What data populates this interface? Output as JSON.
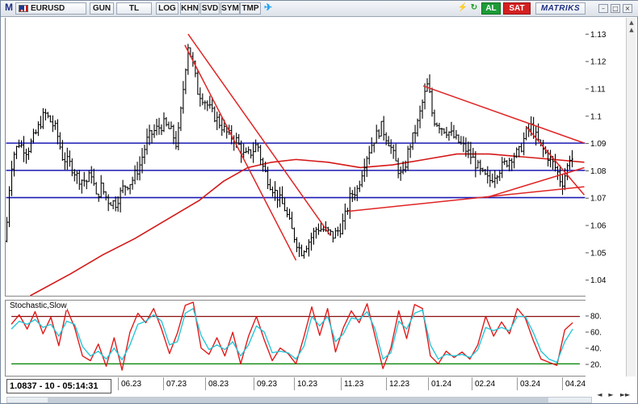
{
  "toolbar": {
    "menu_label": "M",
    "symbol": "EURUSD",
    "period_label": "GUN",
    "currency_label": "TL",
    "log_label": "LOG",
    "khn_label": "KHN",
    "svd_label": "SVD",
    "sym_label": "SYM",
    "tmp_label": "TMP",
    "twitter_icon": "twitter-bird-icon",
    "bolt_icon": "lightning-icon",
    "fast_icon": "fast-trade-icon",
    "buy_label": "AL",
    "sell_label": "SAT",
    "brand": "MATRIKS",
    "buy_color": "#1d9b38",
    "sell_color": "#d42020"
  },
  "window_controls": {
    "minimize": "–",
    "maximize": "□",
    "close": "×"
  },
  "readout": "1.0837 - 10 - 05:14:31",
  "date_axis": [
    "06.23",
    "07.23",
    "08.23",
    "09.23",
    "10.23",
    "11.23",
    "12.23",
    "01.24",
    "02.24",
    "03.24",
    "04.24"
  ],
  "nav": {
    "left": "◄",
    "right": "►",
    "page_right": "►►"
  },
  "indicator_label": "Stochastic,Slow",
  "chart_data": [
    {
      "type": "line",
      "series_note": "EURUSD daily bars with moving average, horizontal levels and trend lines",
      "yticks": [
        1.04,
        1.05,
        1.06,
        1.07,
        1.08,
        1.09,
        1.1,
        1.11,
        1.12,
        1.13
      ],
      "yticklabels": [
        "1.04",
        "1.05",
        "1.06",
        "1.07",
        "1.08",
        "1.09",
        "1.1",
        "1.11",
        "1.12",
        "1.13"
      ],
      "ylim": [
        1.034,
        1.136
      ],
      "x_labels": [
        "06.23",
        "07.23",
        "08.23",
        "09.23",
        "10.23",
        "11.23",
        "12.23",
        "01.24",
        "02.24",
        "03.24",
        "04.24"
      ],
      "price_keypoints": [
        [
          0,
          1.054
        ],
        [
          2,
          1.068
        ],
        [
          8,
          1.085
        ],
        [
          16,
          1.09
        ],
        [
          26,
          1.087
        ],
        [
          36,
          1.093
        ],
        [
          48,
          1.101
        ],
        [
          62,
          1.095
        ],
        [
          70,
          1.085
        ],
        [
          80,
          1.082
        ],
        [
          90,
          1.077
        ],
        [
          100,
          1.076
        ],
        [
          106,
          1.079
        ],
        [
          112,
          1.07
        ],
        [
          118,
          1.074
        ],
        [
          126,
          1.069
        ],
        [
          136,
          1.068
        ],
        [
          146,
          1.074
        ],
        [
          156,
          1.076
        ],
        [
          166,
          1.082
        ],
        [
          176,
          1.092
        ],
        [
          186,
          1.095
        ],
        [
          196,
          1.097
        ],
        [
          206,
          1.094
        ],
        [
          212,
          1.089
        ],
        [
          218,
          1.104
        ],
        [
          222,
          1.116
        ],
        [
          226,
          1.126
        ],
        [
          232,
          1.119
        ],
        [
          238,
          1.109
        ],
        [
          246,
          1.106
        ],
        [
          256,
          1.101
        ],
        [
          266,
          1.097
        ],
        [
          276,
          1.093
        ],
        [
          286,
          1.091
        ],
        [
          296,
          1.085
        ],
        [
          306,
          1.087
        ],
        [
          312,
          1.09
        ],
        [
          318,
          1.082
        ],
        [
          326,
          1.076
        ],
        [
          336,
          1.071
        ],
        [
          346,
          1.066
        ],
        [
          356,
          1.057
        ],
        [
          366,
          1.05
        ],
        [
          376,
          1.054
        ],
        [
          386,
          1.059
        ],
        [
          396,
          1.058
        ],
        [
          406,
          1.056
        ],
        [
          416,
          1.059
        ],
        [
          422,
          1.064
        ],
        [
          428,
          1.071
        ],
        [
          436,
          1.073
        ],
        [
          446,
          1.084
        ],
        [
          456,
          1.091
        ],
        [
          466,
          1.096
        ],
        [
          476,
          1.09
        ],
        [
          486,
          1.081
        ],
        [
          492,
          1.077
        ],
        [
          500,
          1.088
        ],
        [
          510,
          1.096
        ],
        [
          518,
          1.106
        ],
        [
          524,
          1.112
        ],
        [
          530,
          1.099
        ],
        [
          540,
          1.096
        ],
        [
          550,
          1.094
        ],
        [
          560,
          1.091
        ],
        [
          570,
          1.088
        ],
        [
          580,
          1.084
        ],
        [
          590,
          1.079
        ],
        [
          600,
          1.076
        ],
        [
          608,
          1.079
        ],
        [
          618,
          1.082
        ],
        [
          628,
          1.085
        ],
        [
          638,
          1.087
        ],
        [
          646,
          1.094
        ],
        [
          652,
          1.096
        ],
        [
          660,
          1.091
        ],
        [
          668,
          1.087
        ],
        [
          676,
          1.084
        ],
        [
          684,
          1.08
        ],
        [
          690,
          1.075
        ],
        [
          696,
          1.08
        ],
        [
          700,
          1.085
        ],
        [
          704,
          1.084
        ]
      ],
      "moving_average": [
        [
          30,
          1.034
        ],
        [
          80,
          1.042
        ],
        [
          120,
          1.049
        ],
        [
          160,
          1.055
        ],
        [
          200,
          1.062
        ],
        [
          240,
          1.069
        ],
        [
          270,
          1.076
        ],
        [
          300,
          1.081
        ],
        [
          330,
          1.083
        ],
        [
          360,
          1.084
        ],
        [
          400,
          1.083
        ],
        [
          440,
          1.081
        ],
        [
          480,
          1.082
        ],
        [
          520,
          1.084
        ],
        [
          560,
          1.086
        ],
        [
          600,
          1.086
        ],
        [
          640,
          1.085
        ],
        [
          680,
          1.084
        ],
        [
          718,
          1.083
        ]
      ],
      "levels": [
        1.09,
        1.08,
        1.07
      ],
      "trend_lines": [
        {
          "from": [
            222,
            1.126
          ],
          "to": [
            360,
            1.047
          ]
        },
        {
          "from": [
            226,
            1.13
          ],
          "to": [
            403,
            1.056
          ]
        },
        {
          "from": [
            425,
            1.065
          ],
          "to": [
            718,
            1.074
          ]
        },
        {
          "from": [
            518,
            1.111
          ],
          "to": [
            718,
            1.09
          ]
        },
        {
          "from": [
            596,
            1.07
          ],
          "to": [
            718,
            1.081
          ]
        },
        {
          "from": [
            646,
            1.096
          ],
          "to": [
            718,
            1.071
          ]
        }
      ],
      "colors": {
        "price": "#000000",
        "ma": "#d41818",
        "levels": "#1a1ab4",
        "trend": "#e02424"
      }
    },
    {
      "type": "line",
      "title": "Stochastic,Slow",
      "yticks": [
        20,
        40,
        60,
        80
      ],
      "yticklabels": [
        "20.",
        "40.",
        "60.",
        "80."
      ],
      "ylim": [
        5,
        100
      ],
      "reference_lines": [
        {
          "value": 80,
          "color": "#8a1010"
        },
        {
          "value": 20,
          "color": "#108a10"
        }
      ],
      "series": [
        {
          "color": "#e01818",
          "points": [
            [
              0,
              70
            ],
            [
              10,
              82
            ],
            [
              20,
              64
            ],
            [
              30,
              86
            ],
            [
              40,
              58
            ],
            [
              50,
              79
            ],
            [
              60,
              43
            ],
            [
              70,
              90
            ],
            [
              80,
              66
            ],
            [
              90,
              30
            ],
            [
              100,
              24
            ],
            [
              110,
              45
            ],
            [
              120,
              17
            ],
            [
              130,
              53
            ],
            [
              140,
              12
            ],
            [
              150,
              60
            ],
            [
              160,
              84
            ],
            [
              170,
              72
            ],
            [
              180,
              90
            ],
            [
              190,
              64
            ],
            [
              200,
              33
            ],
            [
              210,
              59
            ],
            [
              220,
              94
            ],
            [
              230,
              98
            ],
            [
              240,
              40
            ],
            [
              250,
              32
            ],
            [
              260,
              53
            ],
            [
              270,
              30
            ],
            [
              280,
              60
            ],
            [
              290,
              20
            ],
            [
              300,
              55
            ],
            [
              310,
              80
            ],
            [
              320,
              50
            ],
            [
              330,
              24
            ],
            [
              340,
              40
            ],
            [
              350,
              33
            ],
            [
              360,
              20
            ],
            [
              370,
              54
            ],
            [
              380,
              92
            ],
            [
              390,
              56
            ],
            [
              400,
              90
            ],
            [
              410,
              35
            ],
            [
              420,
              66
            ],
            [
              430,
              87
            ],
            [
              440,
              72
            ],
            [
              450,
              96
            ],
            [
              460,
              55
            ],
            [
              470,
              14
            ],
            [
              480,
              40
            ],
            [
              490,
              87
            ],
            [
              500,
              52
            ],
            [
              510,
              95
            ],
            [
              520,
              90
            ],
            [
              530,
              30
            ],
            [
              540,
              20
            ],
            [
              550,
              36
            ],
            [
              560,
              28
            ],
            [
              570,
              35
            ],
            [
              580,
              26
            ],
            [
              590,
              44
            ],
            [
              600,
              80
            ],
            [
              610,
              55
            ],
            [
              620,
              73
            ],
            [
              630,
              58
            ],
            [
              640,
              90
            ],
            [
              650,
              78
            ],
            [
              660,
              50
            ],
            [
              670,
              26
            ],
            [
              680,
              22
            ],
            [
              690,
              18
            ],
            [
              700,
              63
            ],
            [
              710,
              72
            ]
          ]
        },
        {
          "color": "#22c7d8",
          "points": [
            [
              0,
              64
            ],
            [
              10,
              74
            ],
            [
              20,
              70
            ],
            [
              30,
              76
            ],
            [
              40,
              66
            ],
            [
              50,
              70
            ],
            [
              60,
              55
            ],
            [
              70,
              74
            ],
            [
              80,
              70
            ],
            [
              90,
              42
            ],
            [
              100,
              30
            ],
            [
              110,
              36
            ],
            [
              120,
              26
            ],
            [
              130,
              40
            ],
            [
              140,
              25
            ],
            [
              150,
              44
            ],
            [
              160,
              70
            ],
            [
              170,
              74
            ],
            [
              180,
              82
            ],
            [
              190,
              74
            ],
            [
              200,
              44
            ],
            [
              210,
              48
            ],
            [
              220,
              84
            ],
            [
              230,
              90
            ],
            [
              240,
              56
            ],
            [
              250,
              38
            ],
            [
              260,
              44
            ],
            [
              270,
              38
            ],
            [
              280,
              48
            ],
            [
              290,
              30
            ],
            [
              300,
              44
            ],
            [
              310,
              68
            ],
            [
              320,
              60
            ],
            [
              330,
              34
            ],
            [
              340,
              36
            ],
            [
              350,
              34
            ],
            [
              360,
              26
            ],
            [
              370,
              42
            ],
            [
              380,
              80
            ],
            [
              390,
              68
            ],
            [
              400,
              80
            ],
            [
              410,
              48
            ],
            [
              420,
              58
            ],
            [
              430,
              78
            ],
            [
              440,
              76
            ],
            [
              450,
              86
            ],
            [
              460,
              64
            ],
            [
              470,
              26
            ],
            [
              480,
              34
            ],
            [
              490,
              74
            ],
            [
              500,
              64
            ],
            [
              510,
              84
            ],
            [
              520,
              88
            ],
            [
              530,
              44
            ],
            [
              540,
              26
            ],
            [
              550,
              32
            ],
            [
              560,
              30
            ],
            [
              570,
              32
            ],
            [
              580,
              28
            ],
            [
              590,
              38
            ],
            [
              600,
              66
            ],
            [
              610,
              62
            ],
            [
              620,
              66
            ],
            [
              630,
              62
            ],
            [
              640,
              80
            ],
            [
              650,
              80
            ],
            [
              660,
              60
            ],
            [
              670,
              36
            ],
            [
              680,
              26
            ],
            [
              690,
              22
            ],
            [
              700,
              48
            ],
            [
              710,
              64
            ]
          ]
        }
      ]
    }
  ]
}
